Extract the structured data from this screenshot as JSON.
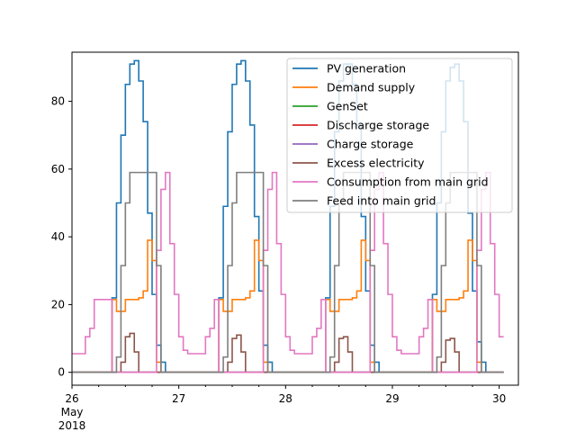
{
  "chart_data": {
    "type": "line",
    "step": true,
    "xlim": [
      26.0,
      30.18
    ],
    "ylim": [
      -3.8,
      94.5
    ],
    "y_ticks": [
      0,
      20,
      40,
      60,
      80
    ],
    "y_tick_labels": [
      "0",
      "20",
      "40",
      "60",
      "80"
    ],
    "x_ticks": [
      26,
      27,
      28,
      29,
      30
    ],
    "x_tick_labels": [
      "26",
      "27",
      "28",
      "29",
      "30"
    ],
    "x_sublabel": [
      "May",
      "2018"
    ],
    "legend_position": "upper-right",
    "sample_step_hours": 1,
    "series": [
      {
        "name": "PV generation",
        "color": "#1f77b4",
        "profiles": [
          [
            0,
            0,
            0,
            0,
            0,
            0,
            0,
            0,
            0,
            22,
            50,
            70,
            85,
            91,
            92,
            86,
            74,
            47,
            23,
            8,
            3,
            0,
            0,
            0
          ],
          [
            0,
            0,
            0,
            0,
            0,
            0,
            0,
            0,
            0,
            22,
            49,
            71,
            85,
            91,
            92,
            86,
            73,
            46,
            24,
            8,
            3,
            0,
            0,
            0
          ],
          [
            0,
            0,
            0,
            0,
            0,
            0,
            0,
            0,
            0,
            22,
            49,
            71,
            86,
            91,
            91,
            85,
            73,
            46,
            24,
            8,
            3,
            0,
            0,
            0
          ],
          [
            0,
            0,
            0,
            0,
            0,
            0,
            0,
            0,
            0,
            23,
            50,
            71,
            86,
            90,
            91,
            86,
            74,
            47,
            24,
            9,
            3,
            0,
            0,
            0
          ]
        ]
      },
      {
        "name": "Demand supply",
        "color": "#ff7f0e",
        "profiles": [
          [
            0,
            0,
            0,
            0,
            0,
            0,
            0,
            0,
            0,
            21.5,
            18,
            18,
            21.5,
            21.5,
            21.5,
            22,
            24,
            39,
            33,
            3,
            0,
            0,
            0,
            0
          ],
          [
            0,
            0,
            0,
            0,
            0,
            0,
            0,
            0,
            0,
            21.5,
            18,
            18,
            21.5,
            21.5,
            21.5,
            22,
            24,
            39,
            33,
            3,
            0,
            0,
            0,
            0
          ],
          [
            0,
            0,
            0,
            0,
            0,
            0,
            0,
            0,
            0,
            21.5,
            18,
            18,
            21.5,
            21.5,
            21.5,
            22,
            24,
            39,
            33,
            3,
            0,
            0,
            0,
            0
          ],
          [
            0,
            0,
            0,
            0,
            0,
            0,
            0,
            0,
            0,
            21.5,
            18,
            18,
            21.5,
            21.5,
            21.5,
            22,
            24,
            39,
            33,
            3,
            0,
            0,
            0,
            0
          ]
        ]
      },
      {
        "name": "GenSet",
        "color": "#2ca02c",
        "profiles": [
          [
            0,
            0,
            0,
            0,
            0,
            0,
            0,
            0,
            0,
            0,
            0,
            0,
            0,
            0,
            0,
            0,
            0,
            0,
            0,
            0,
            0,
            0,
            0,
            0
          ],
          [
            0,
            0,
            0,
            0,
            0,
            0,
            0,
            0,
            0,
            0,
            0,
            0,
            0,
            0,
            0,
            0,
            0,
            0,
            0,
            0,
            0,
            0,
            0,
            0
          ],
          [
            0,
            0,
            0,
            0,
            0,
            0,
            0,
            0,
            0,
            0,
            0,
            0,
            0,
            0,
            0,
            0,
            0,
            0,
            0,
            0,
            0,
            0,
            0,
            0
          ],
          [
            0,
            0,
            0,
            0,
            0,
            0,
            0,
            0,
            0,
            0,
            0,
            0,
            0,
            0,
            0,
            0,
            0,
            0,
            0,
            0,
            0,
            0,
            0,
            0
          ]
        ]
      },
      {
        "name": "Discharge storage",
        "color": "#d62728",
        "profiles": [
          [
            0,
            0,
            0,
            0,
            0,
            0,
            0,
            0,
            0,
            0,
            0,
            0,
            0,
            0,
            0,
            0,
            0,
            0,
            0,
            0,
            0,
            0,
            0,
            0
          ],
          [
            0,
            0,
            0,
            0,
            0,
            0,
            0,
            0,
            0,
            0,
            0,
            0,
            0,
            0,
            0,
            0,
            0,
            0,
            0,
            0,
            0,
            0,
            0,
            0
          ],
          [
            0,
            0,
            0,
            0,
            0,
            0,
            0,
            0,
            0,
            0,
            0,
            0,
            0,
            0,
            0,
            0,
            0,
            0,
            0,
            0,
            0,
            0,
            0,
            0
          ],
          [
            0,
            0,
            0,
            0,
            0,
            0,
            0,
            0,
            0,
            0,
            0,
            0,
            0,
            0,
            0,
            0,
            0,
            0,
            0,
            0,
            0,
            0,
            0,
            0
          ]
        ]
      },
      {
        "name": "Charge storage",
        "color": "#9467bd",
        "profiles": [
          [
            0,
            0,
            0,
            0,
            0,
            0,
            0,
            0,
            0,
            0,
            0,
            0,
            0,
            0,
            0,
            0,
            0,
            0,
            0,
            0,
            0,
            0,
            0,
            0
          ],
          [
            0,
            0,
            0,
            0,
            0,
            0,
            0,
            0,
            0,
            0,
            0,
            0,
            0,
            0,
            0,
            0,
            0,
            0,
            0,
            0,
            0,
            0,
            0,
            0
          ],
          [
            0,
            0,
            0,
            0,
            0,
            0,
            0,
            0,
            0,
            0,
            0,
            0,
            0,
            0,
            0,
            0,
            0,
            0,
            0,
            0,
            0,
            0,
            0,
            0
          ],
          [
            0,
            0,
            0,
            0,
            0,
            0,
            0,
            0,
            0,
            0,
            0,
            0,
            0,
            0,
            0,
            0,
            0,
            0,
            0,
            0,
            0,
            0,
            0,
            0
          ]
        ]
      },
      {
        "name": "Excess electricity",
        "color": "#8c564b",
        "profiles": [
          [
            0,
            0,
            0,
            0,
            0,
            0,
            0,
            0,
            0,
            0,
            0,
            3,
            10.5,
            11.5,
            6,
            0,
            0,
            0,
            0,
            0,
            0,
            0,
            0,
            0
          ],
          [
            0,
            0,
            0,
            0,
            0,
            0,
            0,
            0,
            0,
            0,
            0,
            3,
            10,
            11,
            6,
            0,
            0,
            0,
            0,
            0,
            0,
            0,
            0,
            0
          ],
          [
            0,
            0,
            0,
            0,
            0,
            0,
            0,
            0,
            0,
            0,
            0,
            3,
            10,
            10.5,
            6,
            0,
            0,
            0,
            0,
            0,
            0,
            0,
            0,
            0
          ],
          [
            0,
            0,
            0,
            0,
            0,
            0,
            0,
            0,
            0,
            0,
            0,
            3,
            9.5,
            10,
            6,
            0,
            0,
            0,
            0,
            0,
            0,
            0,
            0,
            0
          ]
        ]
      },
      {
        "name": "Consumption from main grid",
        "color": "#e377c2",
        "profiles": [
          [
            5.5,
            5.5,
            5.5,
            10.5,
            13,
            21.5,
            21.5,
            21.5,
            21.5,
            0,
            0,
            0,
            0,
            0,
            0,
            0,
            0,
            0,
            0,
            36,
            54,
            59,
            38,
            23
          ],
          [
            10.5,
            6.5,
            5.5,
            5.5,
            5.5,
            5.5,
            10.5,
            13,
            21.5,
            0,
            0,
            0,
            0,
            0,
            0,
            0,
            0,
            0,
            0,
            36,
            54,
            59,
            38,
            23
          ],
          [
            10.5,
            6.5,
            5.5,
            5.5,
            5.5,
            5.5,
            10.5,
            13,
            21.5,
            0,
            0,
            0,
            0,
            0,
            0,
            0,
            0,
            0,
            0,
            36,
            54,
            59,
            38,
            23
          ],
          [
            10.5,
            6.5,
            5.5,
            5.5,
            5.5,
            5.5,
            10.5,
            13,
            21.5,
            0,
            0,
            0,
            0,
            0,
            0,
            0,
            0,
            0,
            0,
            36,
            54,
            59,
            38,
            23
          ]
        ]
      },
      {
        "name": "Feed into main grid",
        "color": "#7f7f7f",
        "profiles": [
          [
            0,
            0,
            0,
            0,
            0,
            0,
            0,
            0,
            0,
            0,
            4.5,
            31.5,
            50,
            59,
            59,
            59,
            59,
            59,
            59,
            31.5,
            0,
            0,
            0,
            0
          ],
          [
            0,
            0,
            0,
            0,
            0,
            0,
            0,
            0,
            0,
            0,
            4.5,
            31.5,
            50,
            59,
            59,
            59,
            59,
            59,
            59,
            31.5,
            0,
            0,
            0,
            0
          ],
          [
            0,
            0,
            0,
            0,
            0,
            0,
            0,
            0,
            0,
            0,
            4.5,
            31.5,
            50,
            59,
            59,
            59,
            59,
            59,
            59,
            31.5,
            0,
            0,
            0,
            0
          ],
          [
            0,
            0,
            0,
            0,
            0,
            0,
            0,
            0,
            0,
            0,
            4.5,
            31.5,
            50,
            59,
            59,
            59,
            59,
            59,
            59,
            31.5,
            0,
            0,
            0,
            0
          ]
        ]
      }
    ],
    "tail_values": [
      0,
      0,
      0,
      0,
      0,
      0,
      10.5,
      0
    ]
  }
}
